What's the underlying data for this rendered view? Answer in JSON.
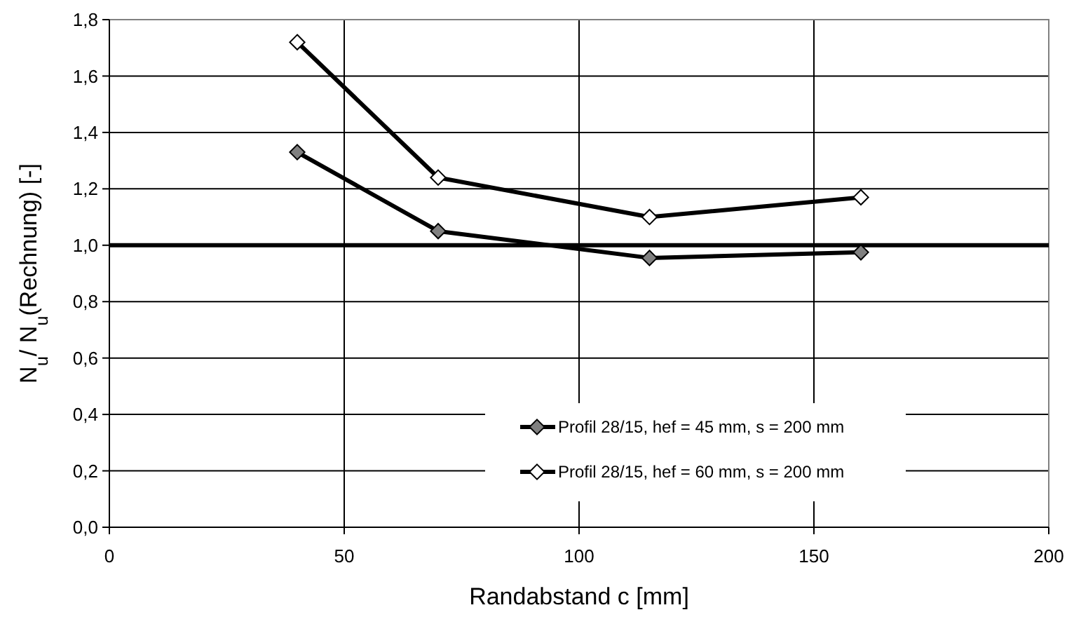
{
  "chart_data": {
    "type": "line",
    "xlabel": "Randabstand c [mm]",
    "ylabel": "N$_{u}$/ N$_{u}$(Rechnung) [-]",
    "x": [
      40,
      70,
      115,
      160
    ],
    "series": [
      {
        "name": "Profil 28/15, hef = 45 mm, s = 200 mm",
        "color": "#000000",
        "colors": [
          "#808080",
          "#808080",
          "#808080",
          "#808080"
        ],
        "values": [
          1.33,
          1.05,
          0.955,
          0.975
        ]
      },
      {
        "name": "Profil 28/15, hef = 60 mm, s = 200 mm",
        "color": "#000000",
        "colors": [
          "#ffffff",
          "#ffffff",
          "#ffffff",
          "#ffffff"
        ],
        "values": [
          1.72,
          1.24,
          1.1,
          1.17
        ]
      }
    ],
    "xlim": [
      0,
      200
    ],
    "xticks": [
      0,
      50,
      100,
      150,
      200
    ],
    "ylim": [
      0,
      1.8
    ],
    "yticks": [
      {
        "value": 0,
        "label": "0,0"
      },
      {
        "value": 0.2,
        "label": "0,2"
      },
      {
        "value": 0.4,
        "label": "0,4"
      },
      {
        "value": 0.6,
        "label": "0,6"
      },
      {
        "value": 0.8,
        "label": "0,8"
      },
      {
        "value": 1,
        "label": "1,0"
      },
      {
        "value": 1.2,
        "label": "1,2"
      },
      {
        "value": 1.4,
        "label": "1,4"
      },
      {
        "value": 1.6,
        "label": "1,6"
      },
      {
        "value": 1.8,
        "label": "1,8"
      }
    ],
    "ref_lines": [
      {
        "axis": "y",
        "value": 1,
        "color": "#000000"
      }
    ],
    "grid": true,
    "legend": "bottom right",
    "marker": "diamond",
    "line_style": "solid"
  }
}
